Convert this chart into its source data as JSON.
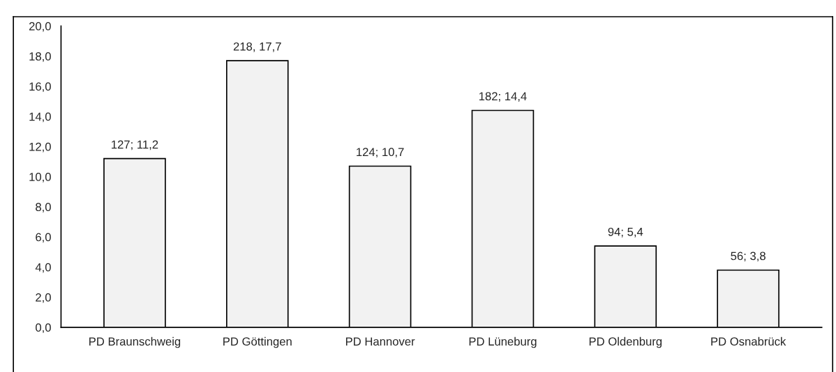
{
  "chart_data": {
    "type": "bar",
    "categories": [
      "PD Braunschweig",
      "PD Göttingen",
      "PD Hannover",
      "PD Lüneburg",
      "PD Oldenburg",
      "PD Osnabrück"
    ],
    "values": [
      11.2,
      17.7,
      10.7,
      14.4,
      5.4,
      3.8
    ],
    "value_labels": [
      "127; 11,2",
      "218, 17,7",
      "124; 10,7",
      "182; 14,4",
      "94; 5,4",
      "56; 3,8"
    ],
    "color": "#f2f2f2",
    "ylim": [
      0,
      20
    ],
    "yticks": [
      {
        "value": 0,
        "label": "0,0"
      },
      {
        "value": 2,
        "label": "2,0"
      },
      {
        "value": 4,
        "label": "4,0"
      },
      {
        "value": 6,
        "label": "6,0"
      },
      {
        "value": 8,
        "label": "8,0"
      },
      {
        "value": 10,
        "label": "10,0"
      },
      {
        "value": 12,
        "label": "12,0"
      },
      {
        "value": 14,
        "label": "14,0"
      },
      {
        "value": 16,
        "label": "16,0"
      },
      {
        "value": 18,
        "label": "18,0"
      },
      {
        "value": 20,
        "label": "20,0"
      }
    ],
    "grid": false
  }
}
